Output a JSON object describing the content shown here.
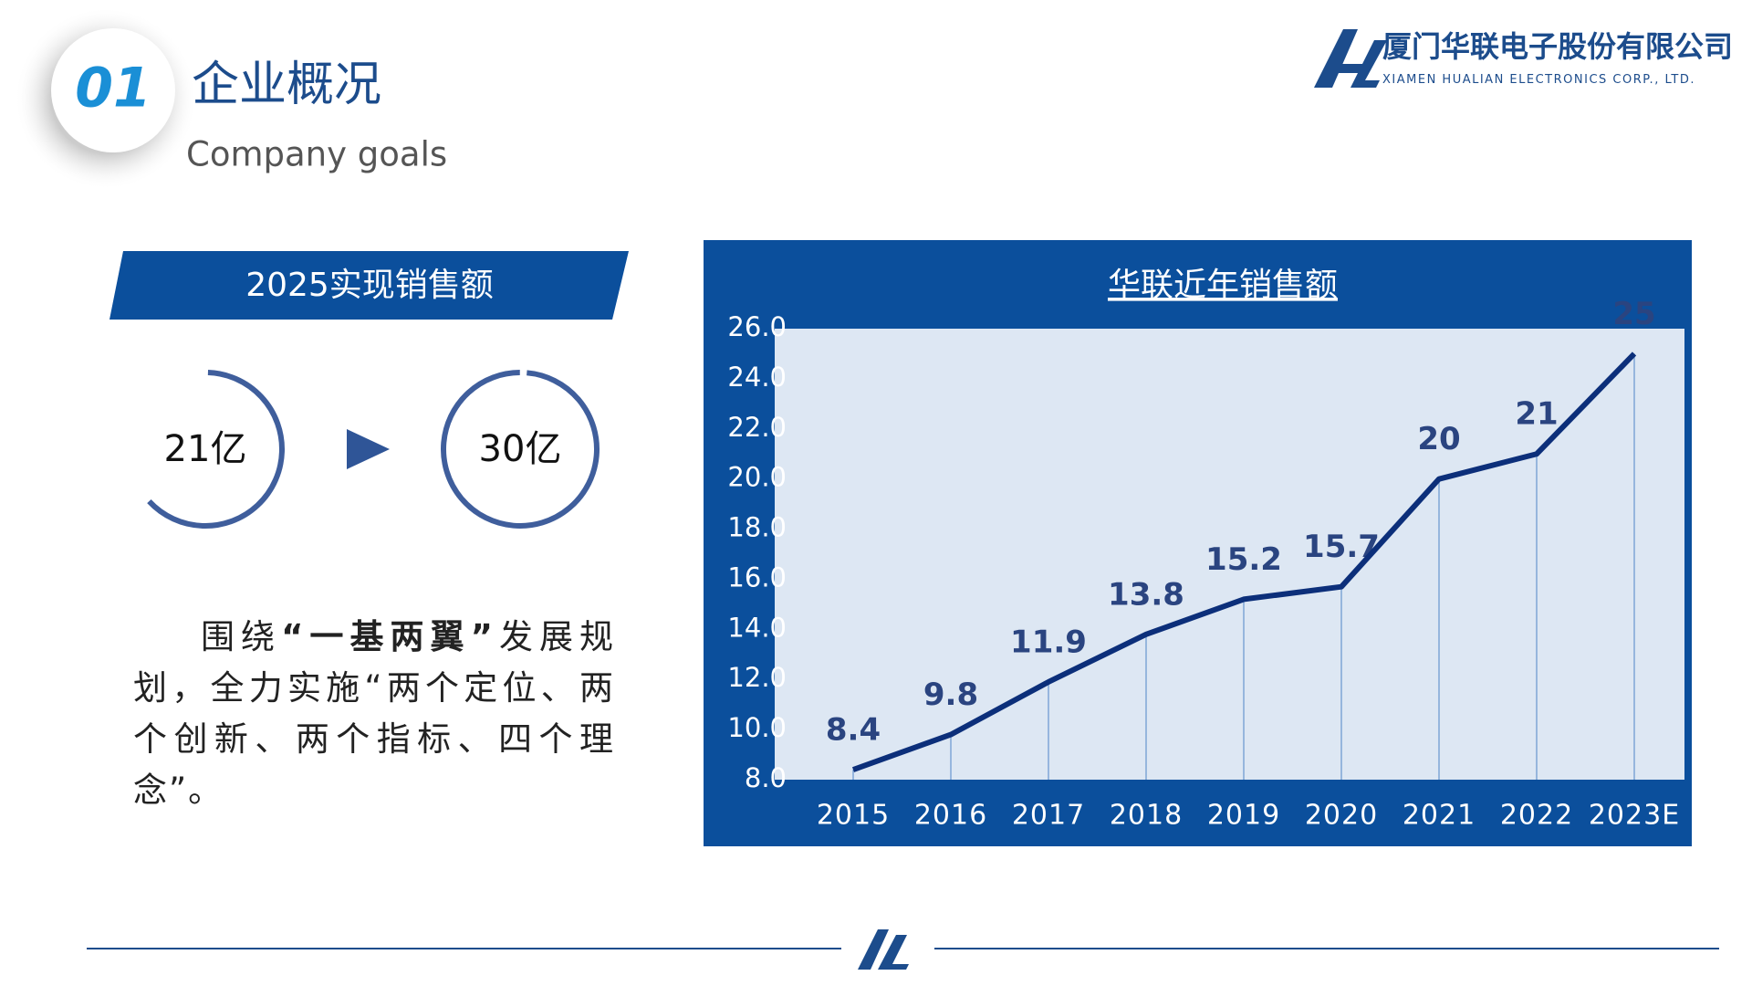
{
  "header": {
    "number": "01",
    "title": "企业概况",
    "subtitle": "Company goals"
  },
  "logo": {
    "name_cn": "厦门华联电子股份有限公司",
    "name_en": "XIAMEN HUALIAN ELECTRONICS CORP., LTD."
  },
  "target": {
    "title": "2025实现销售额",
    "from": "21亿",
    "to": "30亿"
  },
  "description": {
    "parts": [
      "围绕",
      "“一基两翼”",
      "发展规划，全力实施“两个定位、两个创新、两个指标、四个理念”。"
    ]
  },
  "chart_data": {
    "type": "line",
    "title": "华联近年销售额",
    "categories": [
      "2015",
      "2016",
      "2017",
      "2018",
      "2019",
      "2020",
      "2021",
      "2022",
      "2023E"
    ],
    "values": [
      8.4,
      9.8,
      11.9,
      13.8,
      15.2,
      15.7,
      20,
      21,
      25
    ],
    "color": "#0c2f7a",
    "ylim": [
      8,
      26
    ],
    "yticks": [
      {
        "value": 8,
        "label": "8.0"
      },
      {
        "value": 10,
        "label": "10.0"
      },
      {
        "value": 12,
        "label": "12.0"
      },
      {
        "value": 14,
        "label": "14.0"
      },
      {
        "value": 16,
        "label": "16.0"
      },
      {
        "value": 18,
        "label": "18.0"
      },
      {
        "value": 20,
        "label": "20.0"
      },
      {
        "value": 22,
        "label": "22.0"
      },
      {
        "value": 24,
        "label": "24.0"
      },
      {
        "value": 26,
        "label": "26.0"
      }
    ],
    "grid": false
  }
}
